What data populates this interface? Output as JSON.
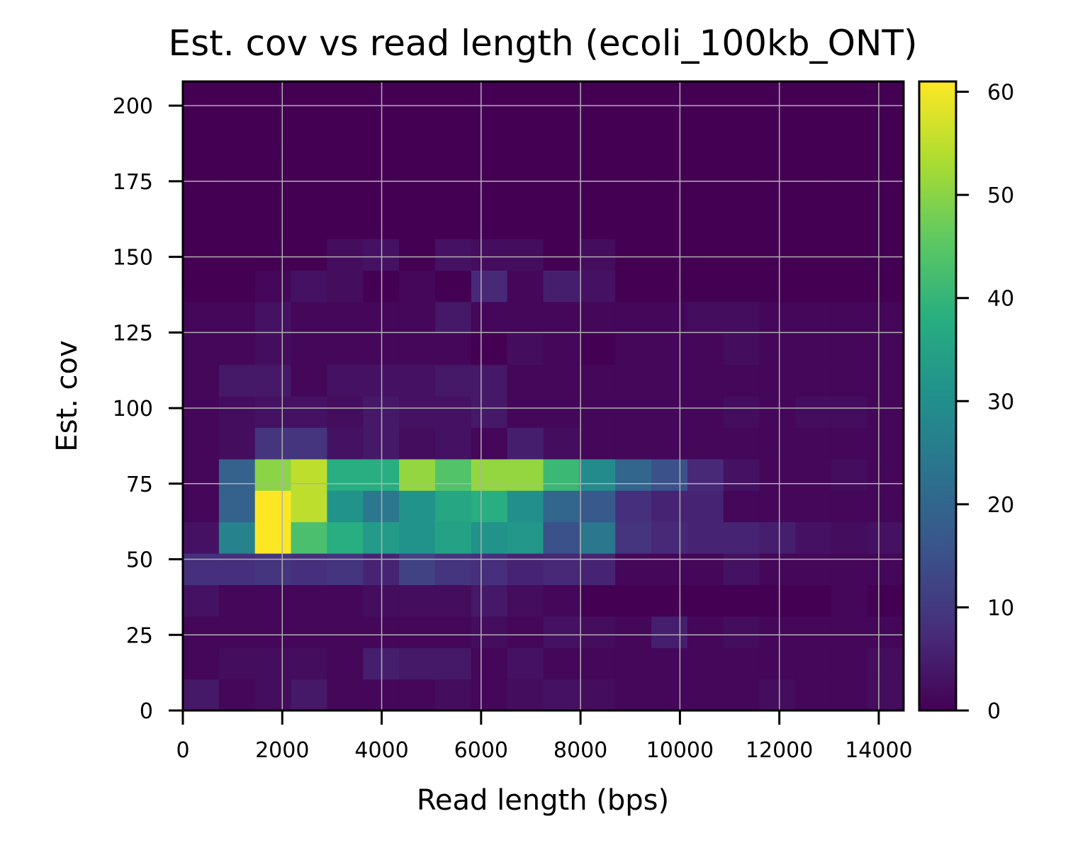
{
  "chart_data": {
    "type": "heatmap",
    "title": "Est. cov vs read length (ecoli_100kb_ONT)",
    "xlabel": "Read length (bps)",
    "ylabel": "Est. cov",
    "xlim": [
      0,
      14500
    ],
    "ylim": [
      0,
      208
    ],
    "xticks": [
      0,
      2000,
      4000,
      6000,
      8000,
      10000,
      12000,
      14000
    ],
    "xtick_labels": [
      "0",
      "2000",
      "4000",
      "6000",
      "8000",
      "10000",
      "12000",
      "14000"
    ],
    "yticks": [
      0,
      25,
      50,
      75,
      100,
      125,
      150,
      175,
      200
    ],
    "ytick_labels": [
      "0",
      "25",
      "50",
      "75",
      "100",
      "125",
      "150",
      "175",
      "200"
    ],
    "grid": true,
    "colormap": "viridis",
    "colorbar": {
      "min": 0,
      "max": 61,
      "ticks": [
        0,
        10,
        20,
        30,
        40,
        50,
        60
      ],
      "tick_labels": [
        "0",
        "10",
        "20",
        "30",
        "40",
        "50",
        "60"
      ]
    },
    "x_bin_edges": [
      0,
      725,
      1450,
      2175,
      2900,
      3625,
      4350,
      5075,
      5800,
      6525,
      7250,
      7975,
      8700,
      9425,
      10150,
      10875,
      11600,
      12325,
      13050,
      13775,
      14500
    ],
    "y_bin_edges": [
      0,
      10.4,
      20.8,
      31.2,
      41.6,
      52,
      62.4,
      72.8,
      83.2,
      93.6,
      104,
      114.4,
      124.8,
      135.2,
      145.6,
      156,
      166.4,
      176.8,
      187.2,
      197.6,
      208
    ],
    "counts": [
      [
        4,
        1,
        2,
        4,
        1,
        1,
        1,
        2,
        1,
        2,
        3,
        2,
        1,
        1,
        1,
        1,
        2,
        1,
        1,
        2
      ],
      [
        1,
        2,
        2,
        2,
        1,
        5,
        4,
        4,
        1,
        3,
        1,
        1,
        1,
        1,
        1,
        1,
        1,
        1,
        1,
        2
      ],
      [
        1,
        1,
        1,
        1,
        1,
        1,
        1,
        1,
        2,
        1,
        3,
        2,
        1,
        5,
        1,
        2,
        1,
        1,
        1,
        1
      ],
      [
        3,
        1,
        1,
        1,
        1,
        2,
        2,
        2,
        4,
        2,
        1,
        0,
        0,
        0,
        0,
        0,
        0,
        0,
        1,
        0
      ],
      [
        8,
        8,
        9,
        8,
        9,
        6,
        12,
        9,
        8,
        6,
        7,
        6,
        1,
        1,
        1,
        3,
        1,
        1,
        1,
        1
      ],
      [
        3,
        27,
        61,
        43,
        38,
        33,
        31,
        35,
        31,
        32,
        15,
        24,
        9,
        7,
        6,
        6,
        5,
        3,
        2,
        3
      ],
      [
        1,
        19,
        61,
        55,
        31,
        24,
        31,
        36,
        38,
        30,
        20,
        17,
        8,
        6,
        6,
        1,
        1,
        1,
        1,
        1
      ],
      [
        1,
        19,
        50,
        55,
        38,
        38,
        51,
        44,
        51,
        51,
        41,
        29,
        20,
        15,
        7,
        3,
        1,
        1,
        2,
        1
      ],
      [
        1,
        2,
        9,
        9,
        3,
        4,
        2,
        3,
        1,
        5,
        2,
        1,
        1,
        1,
        1,
        1,
        1,
        1,
        1,
        1
      ],
      [
        1,
        2,
        3,
        3,
        2,
        4,
        3,
        3,
        4,
        1,
        1,
        1,
        1,
        1,
        1,
        2,
        1,
        2,
        2,
        1
      ],
      [
        1,
        4,
        4,
        1,
        3,
        3,
        3,
        4,
        4,
        1,
        1,
        1,
        1,
        1,
        1,
        1,
        1,
        1,
        1,
        1
      ],
      [
        1,
        1,
        2,
        1,
        1,
        1,
        1,
        1,
        0,
        2,
        1,
        0,
        1,
        1,
        1,
        2,
        1,
        1,
        1,
        1
      ],
      [
        1,
        1,
        3,
        1,
        1,
        1,
        1,
        4,
        1,
        1,
        1,
        1,
        1,
        1,
        2,
        2,
        1,
        1,
        1,
        1
      ],
      [
        0,
        0,
        1,
        3,
        2,
        0,
        1,
        0,
        7,
        1,
        5,
        3,
        0,
        0,
        0,
        0,
        0,
        0,
        0,
        0
      ],
      [
        0,
        0,
        0,
        0,
        2,
        3,
        0,
        3,
        2,
        2,
        0,
        2,
        0,
        0,
        0,
        0,
        0,
        0,
        0,
        0
      ],
      [
        0,
        0,
        0,
        0,
        0,
        0,
        0,
        0,
        0,
        0,
        0,
        0,
        0,
        0,
        0,
        0,
        0,
        0,
        0,
        0
      ],
      [
        0,
        0,
        0,
        0,
        0,
        0,
        0,
        0,
        0,
        0,
        0,
        0,
        0,
        0,
        0,
        0,
        0,
        0,
        0,
        0
      ],
      [
        0,
        0,
        0,
        0,
        0,
        0,
        0,
        0,
        0,
        0,
        0,
        0,
        0,
        0,
        0,
        0,
        0,
        0,
        0,
        0
      ],
      [
        0,
        0,
        0,
        0,
        0,
        0,
        0,
        0,
        0,
        0,
        0,
        0,
        0,
        0,
        0,
        0,
        0,
        0,
        0,
        0
      ],
      [
        0,
        0,
        0,
        0,
        0,
        0,
        0,
        0,
        0,
        0,
        0,
        0,
        0,
        0,
        0,
        0,
        0,
        0,
        0,
        0
      ]
    ]
  }
}
